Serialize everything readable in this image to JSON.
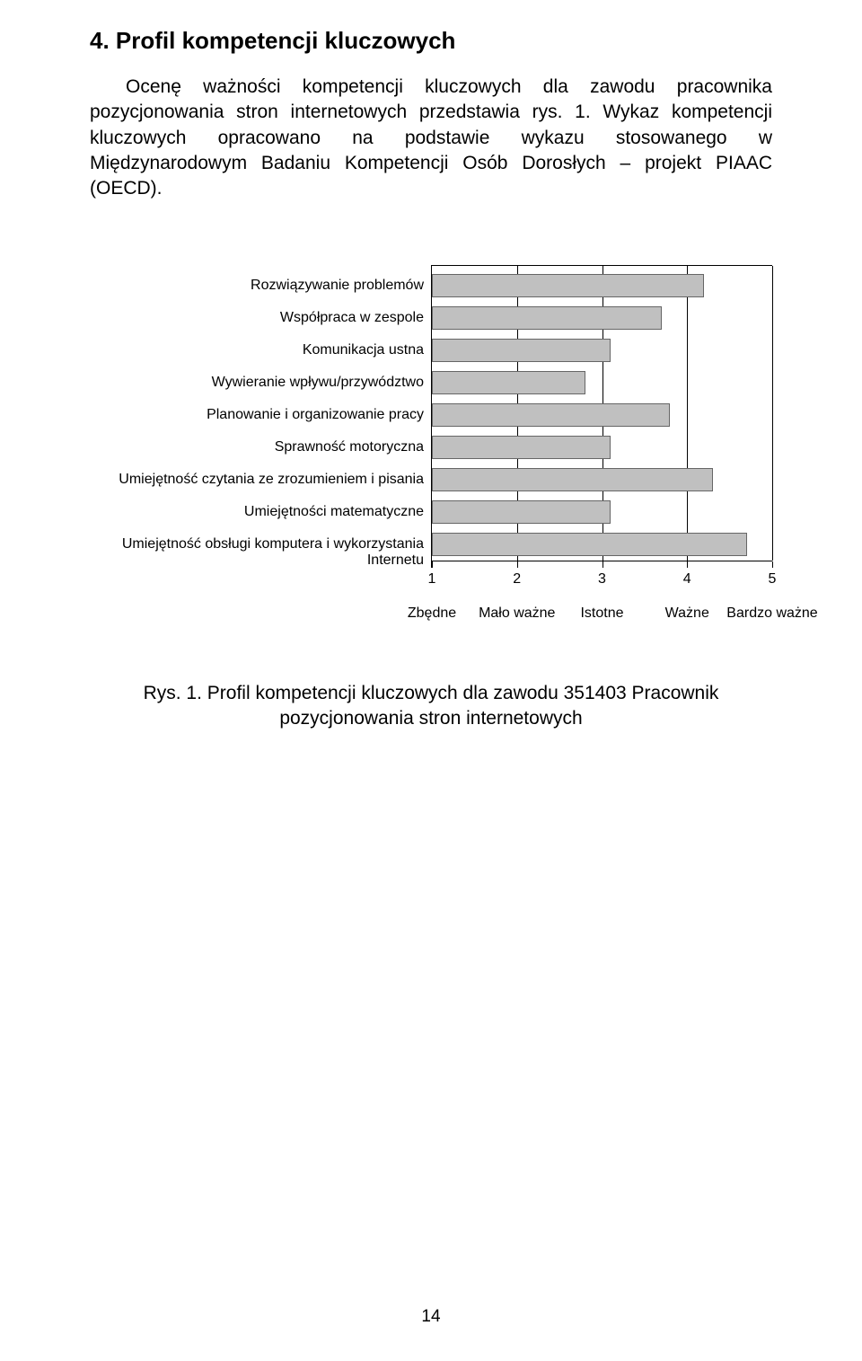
{
  "title": "4. Profil kompetencji kluczowych",
  "para1": "Ocenę ważności kompetencji kluczowych dla zawodu pracownika pozycjonowania stron internetowych przedstawia rys. 1. Wykaz kompetencji kluczowych opracowano na podstawie wykazu stosowanego w Międzynarodowym Badaniu Kompetencji Osób Dorosłych – projekt PIAAC (OECD).",
  "chart": {
    "type": "bar-horizontal",
    "xlim": [
      1,
      5
    ],
    "xtick_values": [
      1,
      2,
      3,
      4,
      5
    ],
    "xtick_labels": [
      "1",
      "2",
      "3",
      "4",
      "5"
    ],
    "legend_labels": [
      "Zbędne",
      "Mało ważne",
      "Istotne",
      "Ważne",
      "Bardzo ważne"
    ],
    "bar_color": "#c0c0c0",
    "grid_color": "#000000",
    "background_color": "#ffffff",
    "label_fontsize": 16,
    "items": [
      {
        "label": "Rozwiązywanie problemów",
        "value": 4.2
      },
      {
        "label": "Współpraca w zespole",
        "value": 3.7
      },
      {
        "label": "Komunikacja ustna",
        "value": 3.1
      },
      {
        "label": "Wywieranie wpływu/przywództwo",
        "value": 2.8
      },
      {
        "label": "Planowanie i organizowanie pracy",
        "value": 3.8
      },
      {
        "label": "Sprawność motoryczna",
        "value": 3.1
      },
      {
        "label": "Umiejętność czytania ze zrozumieniem i pisania",
        "value": 4.3
      },
      {
        "label": "Umiejętności matematyczne",
        "value": 3.1
      },
      {
        "label": "Umiejętność obsługi komputera i wykorzystania Internetu",
        "value": 4.7
      }
    ]
  },
  "caption": "Rys. 1. Profil kompetencji kluczowych dla zawodu 351403 Pracownik pozycjonowania stron internetowych",
  "page_number": "14"
}
